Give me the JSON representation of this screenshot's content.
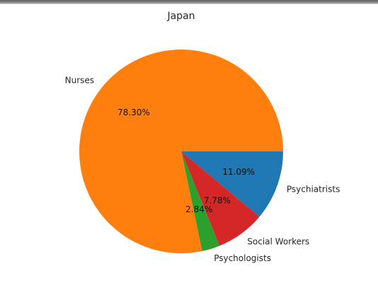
{
  "chart_data": {
    "type": "pie",
    "title": "Japan",
    "categories": [
      "Psychiatrists",
      "Social Workers",
      "Psychologists",
      "Nurses"
    ],
    "values": [
      11.09,
      7.78,
      2.84,
      78.3
    ],
    "labels_pct": [
      "11.09%",
      "7.78%",
      "2.84%",
      "78.30%"
    ],
    "colors": [
      "#1f77b4",
      "#d62728",
      "#2ca02c",
      "#ff7f0e"
    ],
    "start_angle_deg": 0,
    "direction": "clockwise"
  }
}
